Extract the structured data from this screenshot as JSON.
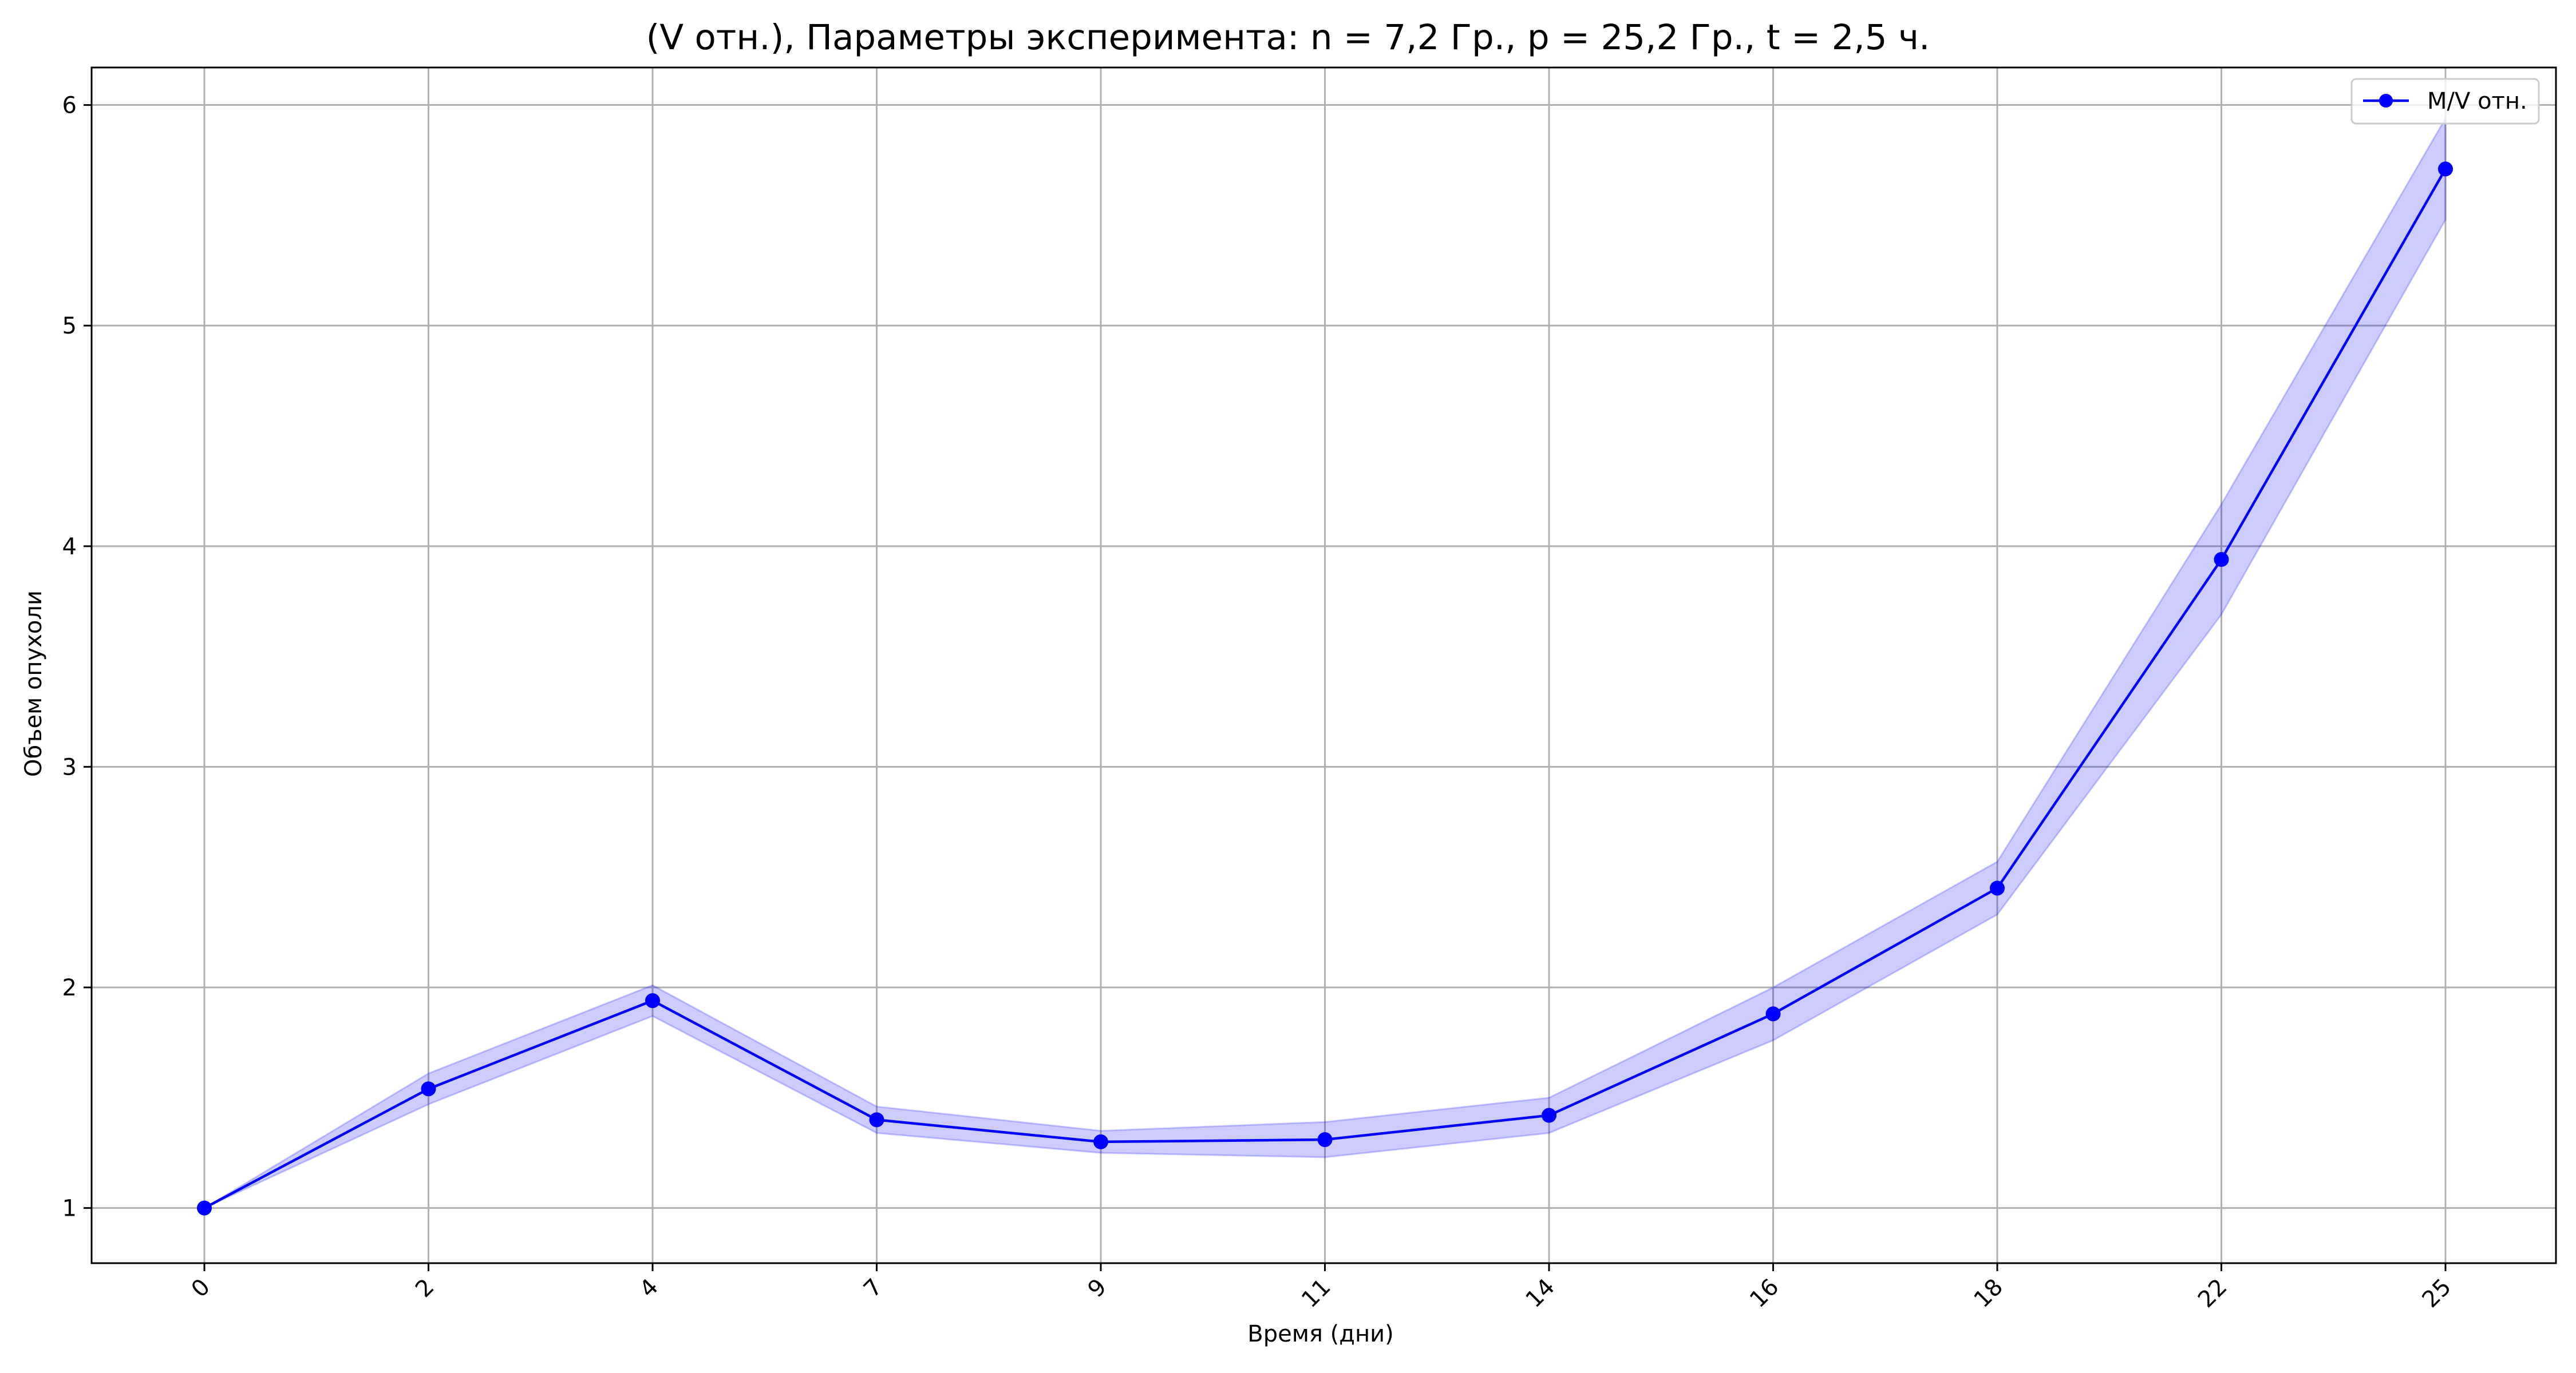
{
  "chart_data": {
    "type": "line",
    "title": "(V отн.), Параметры эксперимента: n = 7,2 Гр., p = 25,2 Гр., t = 2,5 ч.",
    "xlabel": "Время (дни)",
    "ylabel": "Объем опухоли",
    "categories": [
      "0",
      "2",
      "4",
      "7",
      "9",
      "11",
      "14",
      "16",
      "18",
      "22",
      "25"
    ],
    "series": [
      {
        "name": "M/V отн.",
        "values": [
          1.0,
          1.54,
          1.94,
          1.4,
          1.3,
          1.31,
          1.42,
          1.88,
          2.45,
          3.94,
          5.71
        ],
        "lower": [
          1.0,
          1.47,
          1.87,
          1.34,
          1.25,
          1.23,
          1.34,
          1.76,
          2.33,
          3.69,
          5.48
        ],
        "upper": [
          1.0,
          1.61,
          2.01,
          1.46,
          1.35,
          1.39,
          1.5,
          2.0,
          2.57,
          4.19,
          5.94
        ],
        "color": "#0000ff",
        "band_color": "#0000ff"
      }
    ],
    "ylim": [
      0.75,
      6.17
    ],
    "yticks": [
      1,
      2,
      3,
      4,
      5,
      6
    ],
    "grid": true,
    "legend_position": "top-right"
  }
}
